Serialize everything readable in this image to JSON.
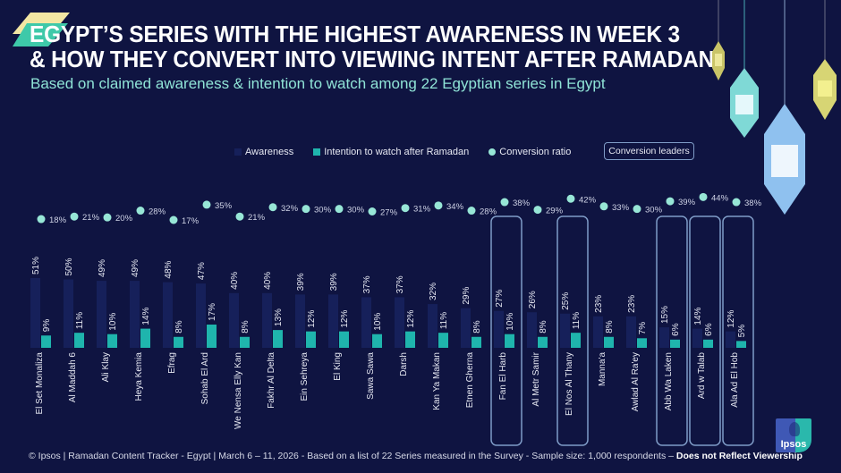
{
  "header": {
    "title": "EGYPT’S SERIES WITH THE HIGHEST AWARENESS IN WEEK 3\n& HOW THEY CONVERT INTO VIEWING INTENT AFTER RAMADAN",
    "subtitle": "Based on claimed awareness & intention to watch among 22 Egyptian series in Egypt"
  },
  "legend": {
    "awareness": "Awareness",
    "intention": "Intention to watch after Ramadan",
    "conversion": "Conversion ratio",
    "leaders_badge": "Conversion leaders"
  },
  "colors": {
    "background": "#0f1441",
    "awareness_bar": "#16205a",
    "intention_bar": "#1fb5ad",
    "conversion_dot": "#97e6d6",
    "leader_box": "#7f9cc7",
    "subtitle": "#8fe3d6"
  },
  "chart_data": {
    "type": "bar",
    "title": "EGYPT’S SERIES WITH THE HIGHEST AWARENESS IN WEEK 3 & HOW THEY CONVERT INTO VIEWING INTENT AFTER RAMADAN",
    "subtitle": "Based on claimed awareness & intention to watch among 22 Egyptian series in Egypt",
    "xlabel": "",
    "ylabel": "",
    "ylim": [
      0,
      60
    ],
    "unit": "%",
    "grid": false,
    "legend_position": "top",
    "categories": [
      "El Set Monaliza",
      "Al Maddah 6",
      "Ali Klay",
      "Heya Kemia",
      "Efrag",
      "Sohab El Ard",
      "We Nensa Elly Kan",
      "Fakhr Al Delta",
      "Ein Sehreya",
      "El King",
      "Sawa Sawa",
      "Darsh",
      "Kan Ya Makan",
      "Etnen Gherna",
      "Fan El Harb",
      "Al Metr Samir",
      "El Nos Al Thany",
      "Manna'a",
      "Awlad Al Ra'ey",
      "Abb Wa Laken",
      "Ard w Talab",
      "Ala Ad El Hob"
    ],
    "series": [
      {
        "name": "Awareness",
        "values": [
          51,
          50,
          49,
          49,
          48,
          47,
          40,
          40,
          39,
          39,
          37,
          37,
          32,
          29,
          27,
          26,
          25,
          23,
          23,
          15,
          14,
          12
        ]
      },
      {
        "name": "Intention to watch after Ramadan",
        "values": [
          9,
          11,
          10,
          14,
          8,
          17,
          8,
          13,
          12,
          12,
          10,
          12,
          11,
          8,
          10,
          8,
          11,
          8,
          7,
          6,
          6,
          5
        ]
      },
      {
        "name": "Conversion ratio",
        "values": [
          18,
          21,
          20,
          28,
          17,
          35,
          21,
          32,
          30,
          30,
          27,
          31,
          34,
          28,
          38,
          29,
          42,
          33,
          30,
          39,
          44,
          38
        ]
      }
    ],
    "highlighted_conversion_leaders": [
      "Fan El Harb",
      "El Nos Al Thany",
      "Abb Wa Laken",
      "Ard w Talab",
      "Ala Ad El Hob"
    ]
  },
  "footer": {
    "source": "© Ipsos | Ramadan Content Tracker - Egypt | March 6 – 11, 2026 - Based on a list of 22 Series measured in the Survey - Sample size: 1,000 respondents – ",
    "disclaimer": "Does not Reflect Viewership"
  },
  "logo": {
    "text": "Ipsos"
  }
}
